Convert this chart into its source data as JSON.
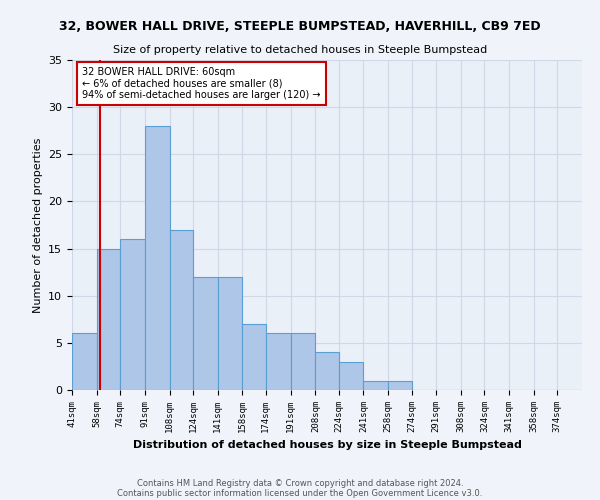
{
  "title": "32, BOWER HALL DRIVE, STEEPLE BUMPSTEAD, HAVERHILL, CB9 7ED",
  "subtitle": "Size of property relative to detached houses in Steeple Bumpstead",
  "xlabel": "Distribution of detached houses by size in Steeple Bumpstead",
  "ylabel": "Number of detached properties",
  "bin_labels": [
    "41sqm",
    "58sqm",
    "74sqm",
    "91sqm",
    "108sqm",
    "124sqm",
    "141sqm",
    "158sqm",
    "174sqm",
    "191sqm",
    "208sqm",
    "224sqm",
    "241sqm",
    "258sqm",
    "274sqm",
    "291sqm",
    "308sqm",
    "324sqm",
    "341sqm",
    "358sqm",
    "374sqm"
  ],
  "bin_edges": [
    41,
    58,
    74,
    91,
    108,
    124,
    141,
    158,
    174,
    191,
    208,
    224,
    241,
    258,
    274,
    291,
    308,
    324,
    341,
    358,
    374,
    391
  ],
  "bar_heights": [
    6,
    15,
    16,
    28,
    17,
    12,
    12,
    7,
    6,
    6,
    4,
    3,
    1,
    1,
    0,
    0,
    0,
    0,
    0,
    0,
    0
  ],
  "bar_color": "#aec6e8",
  "bar_edge_color": "#5a9fd4",
  "grid_color": "#d0d8e8",
  "background_color": "#eaf0f8",
  "fig_background_color": "#f0f4fa",
  "red_line_x": 60,
  "annotation_line1": "32 BOWER HALL DRIVE: 60sqm",
  "annotation_line2": "← 6% of detached houses are smaller (8)",
  "annotation_line3": "94% of semi-detached houses are larger (120) →",
  "annotation_box_color": "#ffffff",
  "annotation_box_edge": "#cc0000",
  "ylim": [
    0,
    35
  ],
  "yticks": [
    0,
    5,
    10,
    15,
    20,
    25,
    30,
    35
  ],
  "footer1": "Contains HM Land Registry data © Crown copyright and database right 2024.",
  "footer2": "Contains public sector information licensed under the Open Government Licence v3.0."
}
